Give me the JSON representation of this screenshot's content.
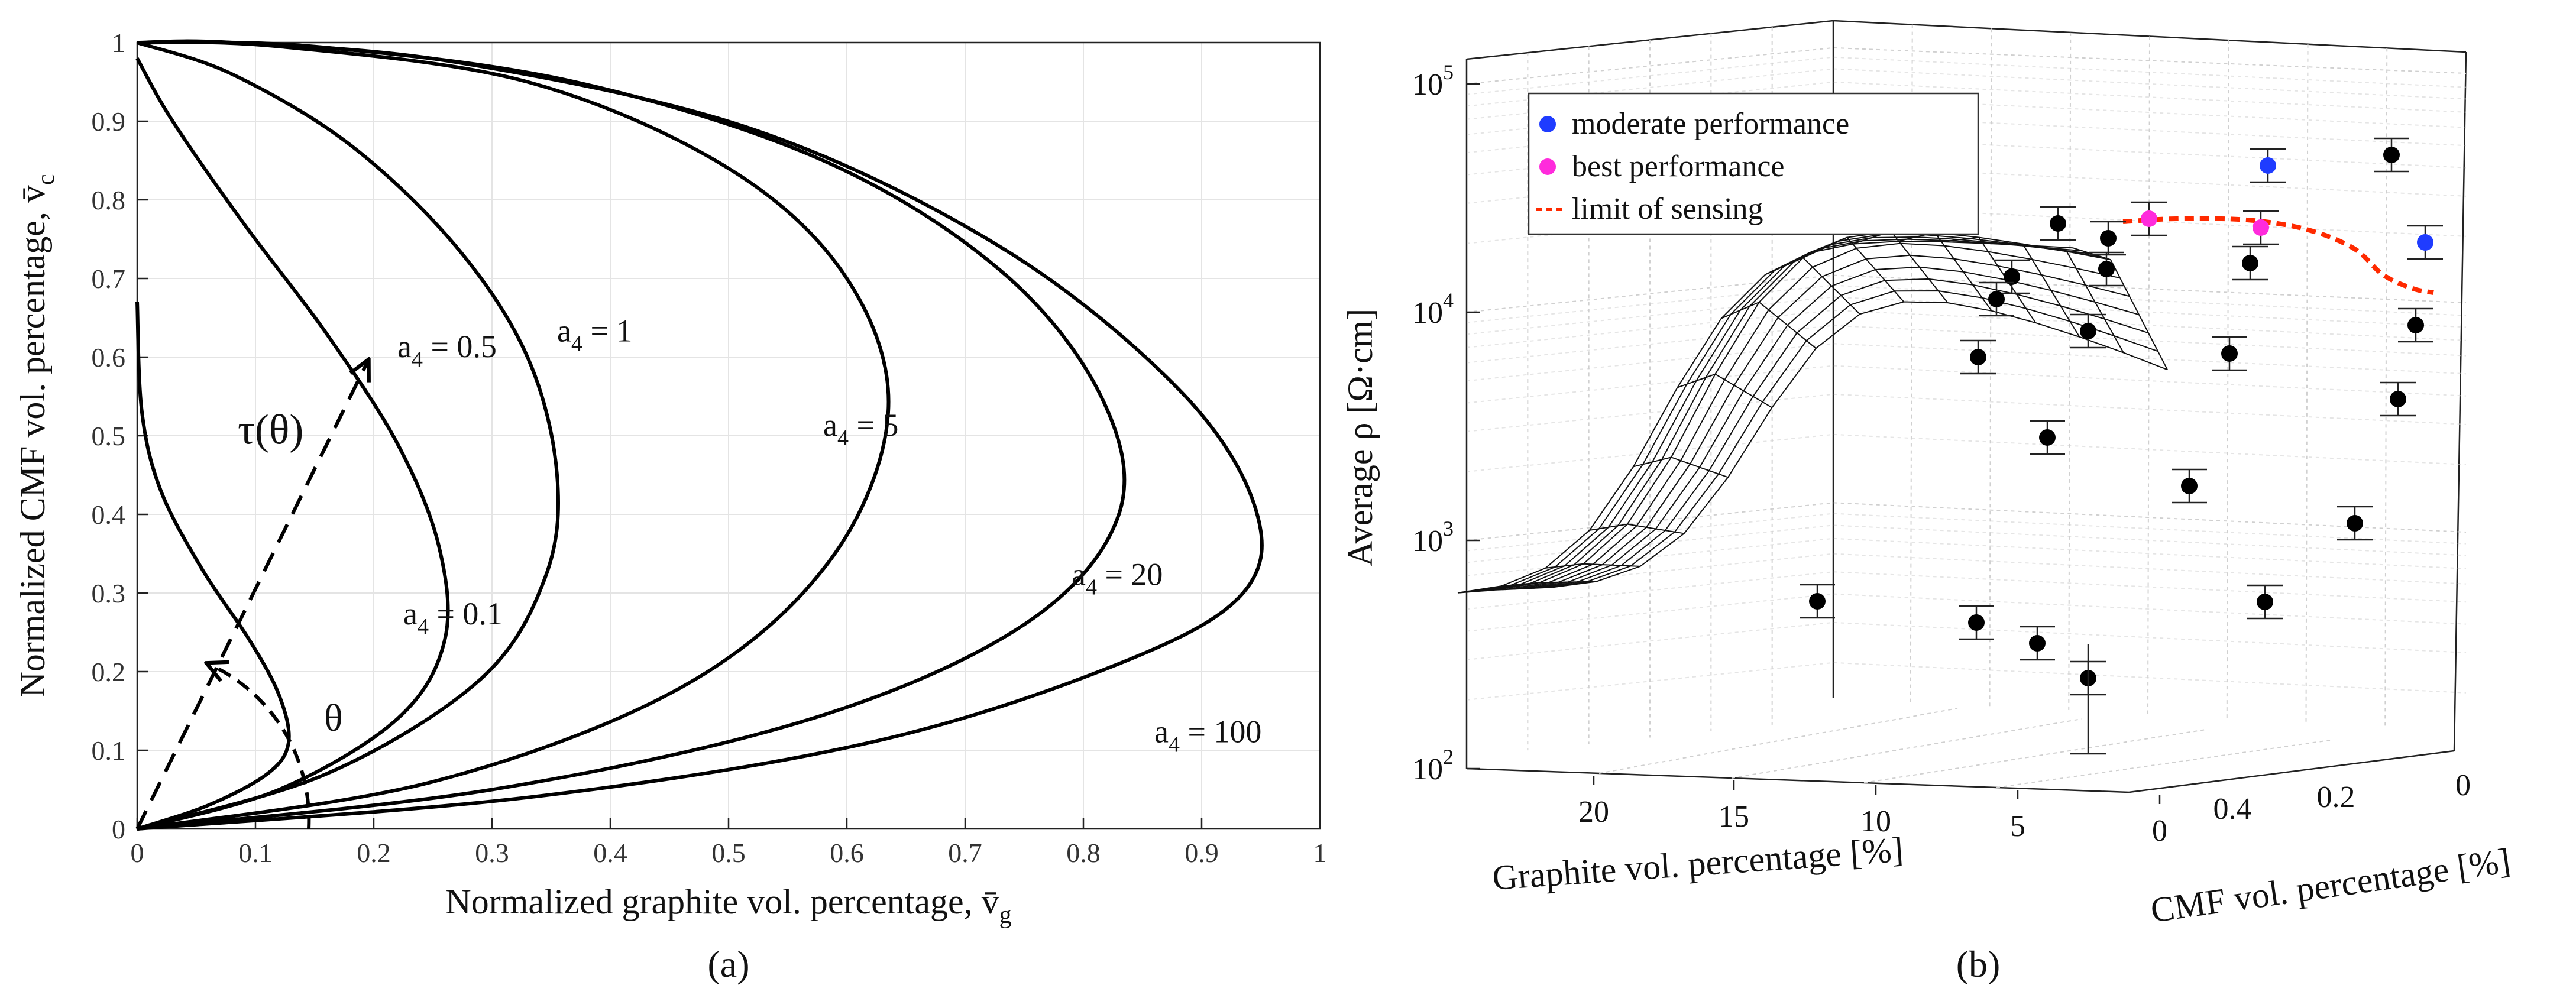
{
  "chart_data": [
    {
      "type": "line",
      "panel_label": "(a)",
      "xlabel": "Normalized graphite vol. percentage, v̄",
      "xlabel_sub": "g",
      "ylabel": "Normalized CMF vol. percentage, v̄",
      "ylabel_sub": "c",
      "xlim": [
        0,
        1
      ],
      "ylim": [
        0,
        1
      ],
      "xticks": [
        "0",
        "0.1",
        "0.2",
        "0.3",
        "0.4",
        "0.5",
        "0.6",
        "0.7",
        "0.8",
        "0.9",
        "1"
      ],
      "yticks": [
        "0",
        "0.1",
        "0.2",
        "0.3",
        "0.4",
        "0.5",
        "0.6",
        "0.7",
        "0.8",
        "0.9",
        "1"
      ],
      "grid": true,
      "series": [
        {
          "name": "a4 = 0.1",
          "label_a": "a",
          "label_sub": "4",
          "label_val": " = 0.1",
          "points": [
            [
              0,
              0
            ],
            [
              0.06,
              0.03
            ],
            [
              0.11,
              0.07
            ],
            [
              0.128,
              0.11
            ],
            [
              0.12,
              0.17
            ],
            [
              0.095,
              0.24
            ],
            [
              0.055,
              0.33
            ],
            [
              0.02,
              0.43
            ],
            [
              0.004,
              0.53
            ],
            [
              0,
              0.67
            ]
          ]
        },
        {
          "name": "a4 = 0.5",
          "label_a": "a",
          "label_sub": "4",
          "label_val": " = 0.5",
          "points": [
            [
              0,
              0
            ],
            [
              0.12,
              0.05
            ],
            [
              0.22,
              0.14
            ],
            [
              0.26,
              0.24
            ],
            [
              0.255,
              0.36
            ],
            [
              0.22,
              0.49
            ],
            [
              0.16,
              0.63
            ],
            [
              0.09,
              0.77
            ],
            [
              0.03,
              0.9
            ],
            [
              0,
              0.98
            ]
          ]
        },
        {
          "name": "a4 = 1",
          "label_a": "a",
          "label_sub": "4",
          "label_val": " = 1",
          "points": [
            [
              0,
              0
            ],
            [
              0.16,
              0.07
            ],
            [
              0.29,
              0.19
            ],
            [
              0.345,
              0.32
            ],
            [
              0.355,
              0.45
            ],
            [
              0.33,
              0.6
            ],
            [
              0.27,
              0.74
            ],
            [
              0.18,
              0.87
            ],
            [
              0.08,
              0.96
            ],
            [
              0,
              1
            ]
          ]
        },
        {
          "name": "a4 = 5",
          "label_a": "a",
          "label_sub": "4",
          "label_val": " = 5",
          "points": [
            [
              0,
              0
            ],
            [
              0.25,
              0.06
            ],
            [
              0.46,
              0.18
            ],
            [
              0.585,
              0.34
            ],
            [
              0.635,
              0.53
            ],
            [
              0.6,
              0.7
            ],
            [
              0.5,
              0.84
            ],
            [
              0.33,
              0.95
            ],
            [
              0.12,
              0.995
            ],
            [
              0,
              1
            ]
          ]
        },
        {
          "name": "a4 = 20",
          "label_a": "a",
          "label_sub": "4",
          "label_val": " = 20",
          "points": [
            [
              0,
              0
            ],
            [
              0.3,
              0.05
            ],
            [
              0.57,
              0.14
            ],
            [
              0.75,
              0.26
            ],
            [
              0.83,
              0.4
            ],
            [
              0.815,
              0.55
            ],
            [
              0.73,
              0.71
            ],
            [
              0.58,
              0.85
            ],
            [
              0.37,
              0.95
            ],
            [
              0.15,
              0.995
            ],
            [
              0,
              1
            ]
          ]
        },
        {
          "name": "a4 = 100",
          "label_a": "a",
          "label_sub": "4",
          "label_val": " = 100",
          "points": [
            [
              0,
              0
            ],
            [
              0.33,
              0.04
            ],
            [
              0.62,
              0.11
            ],
            [
              0.83,
              0.21
            ],
            [
              0.935,
              0.3
            ],
            [
              0.945,
              0.41
            ],
            [
              0.88,
              0.56
            ],
            [
              0.73,
              0.74
            ],
            [
              0.52,
              0.89
            ],
            [
              0.27,
              0.975
            ],
            [
              0.08,
              1
            ],
            [
              0,
              1
            ]
          ]
        }
      ],
      "annotations": {
        "tau": "τ(θ)",
        "theta": "θ",
        "tau_ray_end": [
          0.195,
          0.595
        ],
        "theta_arc_point": [
          0.06,
          0.21
        ]
      }
    },
    {
      "type": "surface3d",
      "panel_label": "(b)",
      "xlabel": "Graphite vol. percentage [%]",
      "ylabel": "CMF vol. percentage [%]",
      "zlabel": "Average ρ [Ω·cm]",
      "graphite_ticks": [
        "20",
        "15",
        "10",
        "5",
        "0"
      ],
      "cmf_ticks": [
        "0.4",
        "0.2",
        "0"
      ],
      "z_ticks": [
        {
          "base": "10",
          "exp": "2"
        },
        {
          "base": "10",
          "exp": "3"
        },
        {
          "base": "10",
          "exp": "4"
        },
        {
          "base": "10",
          "exp": "5"
        }
      ],
      "zscale": "log",
      "zlim": [
        100,
        100000
      ],
      "legend": [
        {
          "label": "moderate performance",
          "color": "#1f3cff",
          "kind": "dot"
        },
        {
          "label": "best performance",
          "color": "#ff2bdc",
          "kind": "dot"
        },
        {
          "label": "limit of sensing",
          "color": "#ff2a00",
          "kind": "dash"
        }
      ],
      "point_colors": {
        "normal": "#000000",
        "moderate": "#1f3cff",
        "best": "#ff2bdc",
        "limit": "#ff2a00"
      }
    }
  ]
}
